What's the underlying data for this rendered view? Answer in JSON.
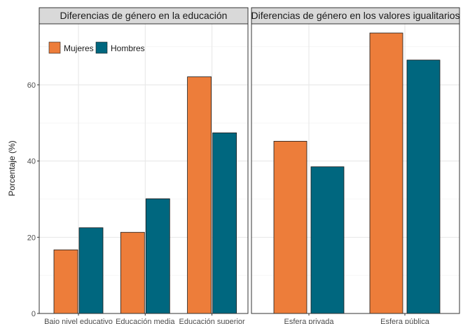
{
  "colors": {
    "mujeres": "#ED7D3A",
    "hombres": "#00677F"
  },
  "chart_data": {
    "type": "bar",
    "ylabel": "Porcentaje (%)",
    "ylim": [
      0,
      76
    ],
    "yticks": [
      0,
      20,
      40,
      60
    ],
    "grid": true,
    "legend": {
      "entries": [
        "Mujeres",
        "Hombres"
      ],
      "placement": "top-left of first panel"
    },
    "panels": [
      {
        "title": "Diferencias de género en la educación",
        "categories": [
          "Bajo nivel educativo",
          "Educación media",
          "Educación superior"
        ],
        "series": [
          {
            "name": "Mujeres",
            "values": [
              16.7,
              21.3,
              62.1
            ]
          },
          {
            "name": "Hombres",
            "values": [
              22.5,
              30.1,
              47.4
            ]
          }
        ]
      },
      {
        "title": "Diferencias de género en los valores igualitarios",
        "categories": [
          "Esfera privada",
          "Esfera pública"
        ],
        "series": [
          {
            "name": "Mujeres",
            "values": [
              45.2,
              73.6
            ]
          },
          {
            "name": "Hombres",
            "values": [
              38.5,
              66.5
            ]
          }
        ]
      }
    ]
  }
}
